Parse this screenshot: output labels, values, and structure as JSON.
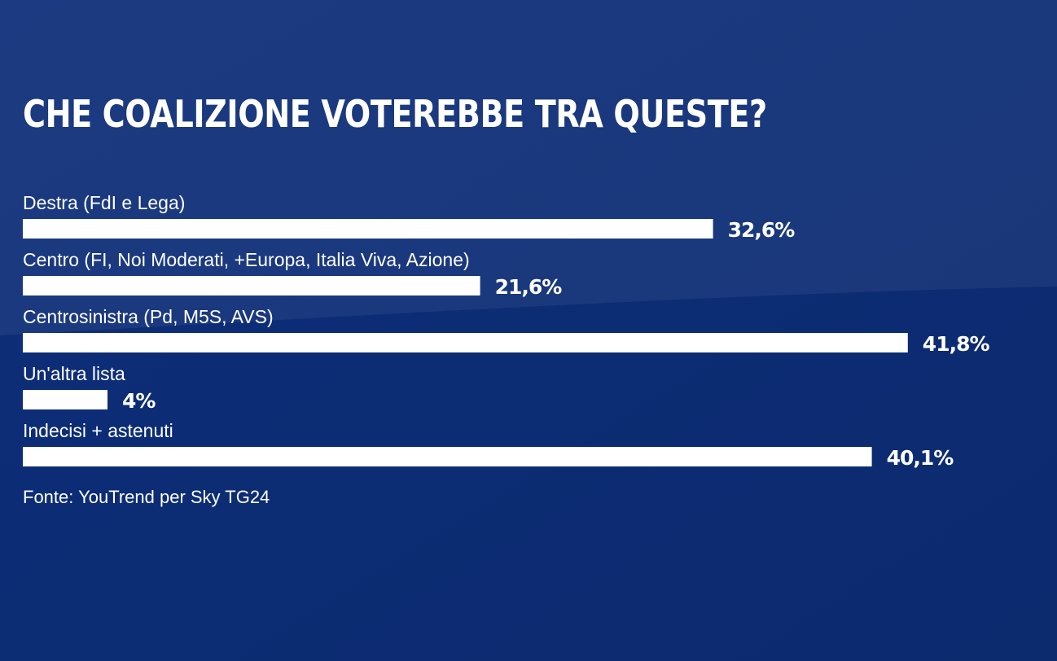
{
  "chart_data": {
    "type": "bar",
    "orientation": "horizontal",
    "title": "CHE COALIZIONE VOTEREBBE TRA QUESTE?",
    "categories": [
      "Destra (FdI e Lega)",
      "Centro (FI, Noi Moderati, +Europa, Italia Viva, Azione)",
      "Centrosinistra (Pd, M5S, AVS)",
      "Un'altra lista",
      "Indecisi + astenuti"
    ],
    "values": [
      32.6,
      21.6,
      41.8,
      4,
      40.1
    ],
    "value_labels": [
      "32,6%",
      "21,6%",
      "41,8%",
      "4%",
      "40,1%"
    ],
    "unit": "%",
    "source": "Fonte: YouTrend per Sky TG24",
    "grid": false,
    "legend": "none",
    "colors": {
      "background": "#0f2f78",
      "bar": "#ffffff",
      "text": "#ffffff"
    }
  }
}
